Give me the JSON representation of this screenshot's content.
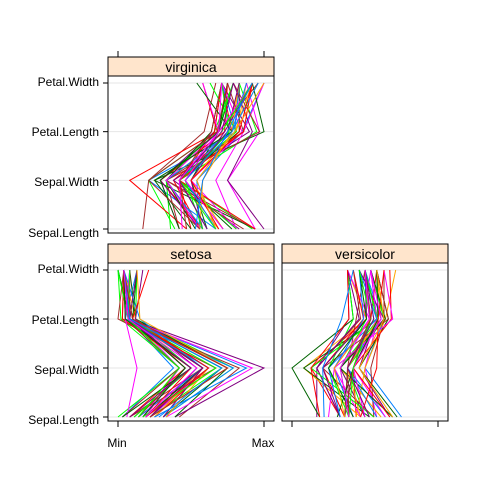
{
  "chart_data": {
    "type": "parallel",
    "variables": [
      "Sepal.Length",
      "Sepal.Width",
      "Petal.Length",
      "Petal.Width"
    ],
    "scale_labels": [
      "Min",
      "Max"
    ],
    "panels": [
      {
        "name": "setosa",
        "lines": [
          [
            0.22,
            0.62,
            0.07,
            0.04
          ],
          [
            0.17,
            0.42,
            0.07,
            0.04
          ],
          [
            0.11,
            0.5,
            0.05,
            0.04
          ],
          [
            0.08,
            0.46,
            0.08,
            0.04
          ],
          [
            0.19,
            0.67,
            0.07,
            0.04
          ],
          [
            0.31,
            0.79,
            0.12,
            0.13
          ],
          [
            0.08,
            0.58,
            0.07,
            0.08
          ],
          [
            0.19,
            0.58,
            0.08,
            0.04
          ],
          [
            0.03,
            0.38,
            0.07,
            0.04
          ],
          [
            0.17,
            0.46,
            0.08,
            0.0
          ],
          [
            0.31,
            0.71,
            0.08,
            0.04
          ],
          [
            0.14,
            0.58,
            0.1,
            0.04
          ],
          [
            0.14,
            0.42,
            0.07,
            0.0
          ],
          [
            0.0,
            0.42,
            0.02,
            0.0
          ],
          [
            0.42,
            0.83,
            0.03,
            0.04
          ],
          [
            0.39,
            1.0,
            0.08,
            0.13
          ],
          [
            0.31,
            0.79,
            0.05,
            0.13
          ],
          [
            0.22,
            0.62,
            0.07,
            0.08
          ],
          [
            0.39,
            0.75,
            0.12,
            0.08
          ],
          [
            0.22,
            0.75,
            0.08,
            0.08
          ],
          [
            0.31,
            0.58,
            0.12,
            0.04
          ],
          [
            0.22,
            0.71,
            0.08,
            0.13
          ],
          [
            0.08,
            0.67,
            0.0,
            0.04
          ],
          [
            0.22,
            0.54,
            0.12,
            0.17
          ],
          [
            0.14,
            0.58,
            0.15,
            0.04
          ],
          [
            0.19,
            0.42,
            0.1,
            0.04
          ],
          [
            0.19,
            0.58,
            0.1,
            0.13
          ],
          [
            0.25,
            0.62,
            0.08,
            0.04
          ],
          [
            0.25,
            0.58,
            0.07,
            0.04
          ],
          [
            0.11,
            0.5,
            0.1,
            0.04
          ],
          [
            0.14,
            0.46,
            0.1,
            0.04
          ],
          [
            0.31,
            0.58,
            0.08,
            0.13
          ],
          [
            0.25,
            0.88,
            0.08,
            0.0
          ],
          [
            0.33,
            0.92,
            0.07,
            0.04
          ],
          [
            0.17,
            0.46,
            0.08,
            0.0
          ],
          [
            0.19,
            0.5,
            0.03,
            0.04
          ],
          [
            0.33,
            0.62,
            0.05,
            0.04
          ],
          [
            0.17,
            0.67,
            0.07,
            0.0
          ],
          [
            0.03,
            0.42,
            0.05,
            0.04
          ],
          [
            0.22,
            0.58,
            0.08,
            0.04
          ],
          [
            0.19,
            0.62,
            0.05,
            0.08
          ],
          [
            0.06,
            0.13,
            0.05,
            0.08
          ],
          [
            0.03,
            0.5,
            0.05,
            0.04
          ],
          [
            0.19,
            0.62,
            0.1,
            0.21
          ],
          [
            0.22,
            0.75,
            0.15,
            0.13
          ],
          [
            0.14,
            0.42,
            0.07,
            0.08
          ],
          [
            0.22,
            0.75,
            0.1,
            0.04
          ],
          [
            0.08,
            0.5,
            0.07,
            0.04
          ],
          [
            0.28,
            0.71,
            0.08,
            0.04
          ],
          [
            0.19,
            0.54,
            0.07,
            0.04
          ]
        ]
      },
      {
        "name": "versicolor",
        "lines": [
          [
            0.75,
            0.5,
            0.63,
            0.54
          ],
          [
            0.58,
            0.5,
            0.59,
            0.58
          ],
          [
            0.72,
            0.46,
            0.66,
            0.58
          ],
          [
            0.33,
            0.13,
            0.51,
            0.5
          ],
          [
            0.61,
            0.33,
            0.61,
            0.58
          ],
          [
            0.39,
            0.33,
            0.59,
            0.5
          ],
          [
            0.56,
            0.54,
            0.63,
            0.63
          ],
          [
            0.17,
            0.17,
            0.39,
            0.38
          ],
          [
            0.64,
            0.38,
            0.61,
            0.5
          ],
          [
            0.25,
            0.29,
            0.49,
            0.54
          ],
          [
            0.19,
            0.0,
            0.42,
            0.38
          ],
          [
            0.44,
            0.42,
            0.54,
            0.58
          ],
          [
            0.47,
            0.08,
            0.51,
            0.38
          ],
          [
            0.5,
            0.38,
            0.63,
            0.54
          ],
          [
            0.36,
            0.38,
            0.44,
            0.5
          ],
          [
            0.67,
            0.46,
            0.58,
            0.54
          ],
          [
            0.36,
            0.42,
            0.59,
            0.58
          ],
          [
            0.42,
            0.29,
            0.53,
            0.38
          ],
          [
            0.53,
            0.08,
            0.59,
            0.58
          ],
          [
            0.36,
            0.21,
            0.49,
            0.42
          ],
          [
            0.44,
            0.5,
            0.64,
            0.71
          ],
          [
            0.5,
            0.33,
            0.51,
            0.5
          ],
          [
            0.56,
            0.21,
            0.66,
            0.58
          ],
          [
            0.5,
            0.33,
            0.63,
            0.46
          ],
          [
            0.58,
            0.38,
            0.56,
            0.5
          ],
          [
            0.64,
            0.42,
            0.58,
            0.54
          ],
          [
            0.69,
            0.33,
            0.64,
            0.54
          ],
          [
            0.67,
            0.42,
            0.68,
            0.67
          ],
          [
            0.47,
            0.38,
            0.59,
            0.58
          ],
          [
            0.39,
            0.25,
            0.42,
            0.38
          ],
          [
            0.33,
            0.17,
            0.47,
            0.42
          ],
          [
            0.33,
            0.17,
            0.46,
            0.38
          ],
          [
            0.42,
            0.29,
            0.49,
            0.46
          ],
          [
            0.47,
            0.29,
            0.69,
            0.63
          ],
          [
            0.31,
            0.42,
            0.59,
            0.58
          ],
          [
            0.47,
            0.58,
            0.59,
            0.63
          ],
          [
            0.69,
            0.46,
            0.63,
            0.58
          ],
          [
            0.56,
            0.13,
            0.58,
            0.5
          ],
          [
            0.36,
            0.42,
            0.53,
            0.5
          ],
          [
            0.33,
            0.21,
            0.51,
            0.5
          ],
          [
            0.33,
            0.25,
            0.58,
            0.46
          ],
          [
            0.5,
            0.42,
            0.61,
            0.54
          ],
          [
            0.42,
            0.25,
            0.51,
            0.46
          ],
          [
            0.19,
            0.13,
            0.39,
            0.38
          ],
          [
            0.36,
            0.29,
            0.54,
            0.5
          ],
          [
            0.39,
            0.42,
            0.54,
            0.46
          ],
          [
            0.39,
            0.38,
            0.54,
            0.5
          ],
          [
            0.53,
            0.38,
            0.56,
            0.5
          ],
          [
            0.22,
            0.21,
            0.34,
            0.42
          ],
          [
            0.39,
            0.33,
            0.53,
            0.5
          ]
        ]
      },
      {
        "name": "virginica",
        "lines": [
          [
            0.56,
            0.54,
            0.85,
            1.0
          ],
          [
            0.42,
            0.29,
            0.69,
            0.75
          ],
          [
            0.78,
            0.42,
            0.83,
            0.83
          ],
          [
            0.56,
            0.38,
            0.78,
            0.71
          ],
          [
            0.61,
            0.42,
            0.81,
            0.88
          ],
          [
            0.92,
            0.42,
            0.95,
            0.83
          ],
          [
            0.17,
            0.21,
            0.59,
            0.67
          ],
          [
            0.83,
            0.38,
            0.9,
            0.71
          ],
          [
            0.67,
            0.21,
            0.81,
            0.71
          ],
          [
            0.81,
            0.67,
            0.86,
            1.0
          ],
          [
            0.61,
            0.5,
            0.69,
            0.79
          ],
          [
            0.58,
            0.29,
            0.73,
            0.75
          ],
          [
            0.69,
            0.42,
            0.76,
            0.83
          ],
          [
            0.39,
            0.21,
            0.68,
            0.79
          ],
          [
            0.42,
            0.33,
            0.69,
            0.96
          ],
          [
            0.58,
            0.5,
            0.73,
            0.92
          ],
          [
            0.61,
            0.42,
            0.76,
            0.71
          ],
          [
            0.94,
            0.75,
            0.97,
            0.88
          ],
          [
            0.94,
            0.25,
            1.0,
            0.92
          ],
          [
            0.47,
            0.08,
            0.68,
            0.58
          ],
          [
            0.72,
            0.5,
            0.8,
            0.92
          ],
          [
            0.36,
            0.33,
            0.66,
            0.79
          ],
          [
            0.94,
            0.33,
            0.97,
            0.79
          ],
          [
            0.56,
            0.29,
            0.66,
            0.71
          ],
          [
            0.67,
            0.54,
            0.8,
            0.83
          ],
          [
            0.81,
            0.5,
            0.85,
            0.71
          ],
          [
            0.53,
            0.33,
            0.64,
            0.71
          ],
          [
            0.5,
            0.42,
            0.66,
            0.71
          ],
          [
            0.58,
            0.33,
            0.78,
            0.83
          ],
          [
            0.81,
            0.42,
            0.81,
            0.63
          ],
          [
            0.86,
            0.33,
            0.86,
            0.75
          ],
          [
            1.0,
            0.75,
            0.92,
            0.79
          ],
          [
            0.58,
            0.33,
            0.78,
            0.88
          ],
          [
            0.56,
            0.33,
            0.69,
            0.58
          ],
          [
            0.5,
            0.25,
            0.78,
            0.54
          ],
          [
            0.94,
            0.42,
            0.86,
            0.92
          ],
          [
            0.56,
            0.58,
            0.78,
            0.96
          ],
          [
            0.58,
            0.46,
            0.76,
            0.71
          ],
          [
            0.47,
            0.42,
            0.64,
            0.71
          ],
          [
            0.72,
            0.46,
            0.75,
            0.83
          ],
          [
            0.67,
            0.46,
            0.78,
            0.96
          ],
          [
            0.72,
            0.46,
            0.69,
            0.92
          ],
          [
            0.42,
            0.29,
            0.69,
            0.75
          ],
          [
            0.69,
            0.5,
            0.83,
            0.92
          ],
          [
            0.67,
            0.54,
            0.8,
            1.0
          ],
          [
            0.67,
            0.42,
            0.71,
            0.92
          ],
          [
            0.56,
            0.21,
            0.68,
            0.75
          ],
          [
            0.61,
            0.42,
            0.71,
            0.79
          ],
          [
            0.53,
            0.58,
            0.75,
            0.92
          ],
          [
            0.44,
            0.42,
            0.69,
            0.71
          ]
        ]
      }
    ],
    "line_colors": [
      "#0080ff",
      "#ff00ff",
      "#006400",
      "#ff0000",
      "#ffa500",
      "#00ff00",
      "#a52a2a",
      "#800080"
    ],
    "strip_color": "#ffe5cc",
    "grid": true
  }
}
